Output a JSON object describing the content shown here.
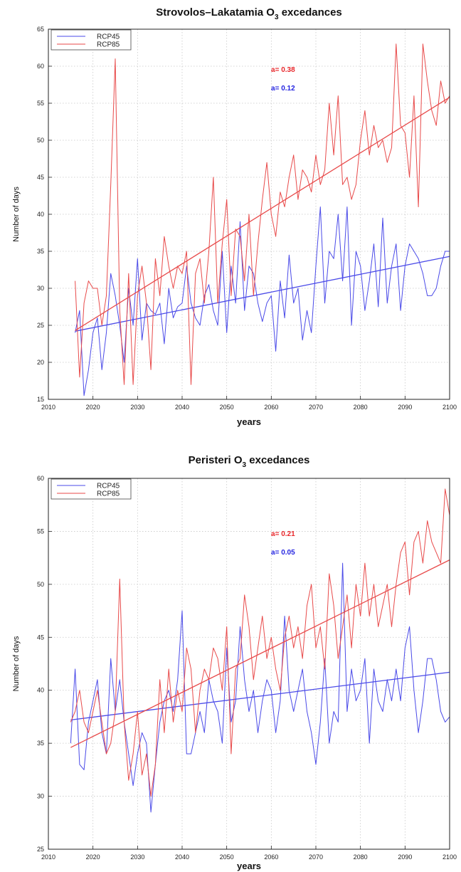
{
  "chart_data": [
    {
      "type": "line",
      "title": {
        "main": "Strovolos–Lakatamia O",
        "sub": "3",
        "rest": " excedances"
      },
      "xlabel": "years",
      "ylabel": "Number of days",
      "xlim": [
        2010,
        2100
      ],
      "ylim": [
        15,
        65
      ],
      "xticks": [
        2010,
        2020,
        2030,
        2040,
        2050,
        2060,
        2070,
        2080,
        2090,
        2100
      ],
      "yticks": [
        15,
        20,
        25,
        30,
        35,
        40,
        45,
        50,
        55,
        60,
        65
      ],
      "grid": true,
      "legend_position": "top-left",
      "annotations": [
        {
          "text": "a= 0.38",
          "color": "#e8262a"
        },
        {
          "text": "a= 0.12",
          "color": "#2323e0"
        }
      ],
      "series": [
        {
          "name": "RCP45",
          "color": "#4a4ae8",
          "x": [
            2016,
            2017,
            2018,
            2019,
            2020,
            2021,
            2022,
            2023,
            2024,
            2025,
            2026,
            2027,
            2028,
            2029,
            2030,
            2031,
            2032,
            2033,
            2034,
            2035,
            2036,
            2037,
            2038,
            2039,
            2040,
            2041,
            2042,
            2043,
            2044,
            2045,
            2046,
            2047,
            2048,
            2049,
            2050,
            2051,
            2052,
            2053,
            2054,
            2055,
            2056,
            2057,
            2058,
            2059,
            2060,
            2061,
            2062,
            2063,
            2064,
            2065,
            2066,
            2067,
            2068,
            2069,
            2070,
            2071,
            2072,
            2073,
            2074,
            2075,
            2076,
            2077,
            2078,
            2079,
            2080,
            2081,
            2082,
            2083,
            2084,
            2085,
            2086,
            2087,
            2088,
            2089,
            2090,
            2091,
            2092,
            2093,
            2094,
            2095,
            2096,
            2097,
            2098,
            2099,
            2100
          ],
          "values": [
            24,
            27,
            15.5,
            19,
            24,
            26,
            19,
            24,
            32,
            29,
            25,
            20,
            30,
            25,
            34,
            23,
            28,
            27,
            26.5,
            28,
            22.5,
            30,
            26,
            27.5,
            28,
            33,
            28,
            26,
            25,
            29,
            30.5,
            27,
            25,
            35,
            24,
            33,
            28,
            39,
            27,
            33,
            32,
            28,
            25.5,
            28,
            29,
            21.5,
            31,
            26,
            34.5,
            28,
            30,
            23,
            27,
            24,
            33,
            41,
            28,
            35,
            34,
            40,
            31,
            41,
            25,
            35,
            33,
            27,
            31,
            36,
            27.5,
            39.5,
            28,
            33,
            36,
            27,
            33,
            36,
            35,
            34,
            32,
            29,
            29,
            30,
            33,
            35,
            35
          ],
          "trend": [
            24.2,
            34.3
          ]
        },
        {
          "name": "RCP85",
          "color": "#e84a4a",
          "x": [
            2016,
            2017,
            2018,
            2019,
            2020,
            2021,
            2022,
            2023,
            2024,
            2025,
            2026,
            2027,
            2028,
            2029,
            2030,
            2031,
            2032,
            2033,
            2034,
            2035,
            2036,
            2037,
            2038,
            2039,
            2040,
            2041,
            2042,
            2043,
            2044,
            2045,
            2046,
            2047,
            2048,
            2049,
            2050,
            2051,
            2052,
            2053,
            2054,
            2055,
            2056,
            2057,
            2058,
            2059,
            2060,
            2061,
            2062,
            2063,
            2064,
            2065,
            2066,
            2067,
            2068,
            2069,
            2070,
            2071,
            2072,
            2073,
            2074,
            2075,
            2076,
            2077,
            2078,
            2079,
            2080,
            2081,
            2082,
            2083,
            2084,
            2085,
            2086,
            2087,
            2088,
            2089,
            2090,
            2091,
            2092,
            2093,
            2094,
            2095,
            2096,
            2097,
            2098,
            2099,
            2100
          ],
          "values": [
            31,
            18,
            28,
            31,
            30,
            30,
            25,
            29,
            44,
            61,
            27,
            17,
            32,
            17,
            29,
            33,
            28,
            19,
            34,
            29,
            37,
            33,
            30,
            33,
            32,
            35,
            17,
            32,
            34,
            28,
            35,
            45,
            28,
            36,
            42,
            29,
            38,
            37,
            31,
            40,
            29,
            36,
            42,
            47,
            40,
            37,
            43,
            41,
            45,
            48,
            42,
            46,
            45,
            43,
            48,
            44,
            46,
            55,
            48,
            56,
            44,
            45,
            42,
            44,
            50,
            54,
            48,
            52,
            49,
            50,
            47,
            49,
            63,
            52,
            51,
            45,
            56,
            41,
            63,
            58,
            54,
            52,
            58,
            55,
            56
          ],
          "trend": [
            24.3,
            55.8
          ]
        }
      ]
    },
    {
      "type": "line",
      "title": {
        "main": "Peristeri O",
        "sub": "3",
        "rest": " excedances"
      },
      "xlabel": "years",
      "ylabel": "Number of days",
      "xlim": [
        2010,
        2100
      ],
      "ylim": [
        25,
        60
      ],
      "xticks": [
        2010,
        2020,
        2030,
        2040,
        2050,
        2060,
        2070,
        2080,
        2090,
        2100
      ],
      "yticks": [
        25,
        30,
        35,
        40,
        45,
        50,
        55,
        60
      ],
      "grid": true,
      "legend_position": "top-left",
      "annotations": [
        {
          "text": "a= 0.21",
          "color": "#e8262a"
        },
        {
          "text": "a= 0.05",
          "color": "#2323e0"
        }
      ],
      "series": [
        {
          "name": "RCP45",
          "color": "#4a4ae8",
          "x": [
            2015,
            2016,
            2017,
            2018,
            2019,
            2020,
            2021,
            2022,
            2023,
            2024,
            2025,
            2026,
            2027,
            2028,
            2029,
            2030,
            2031,
            2032,
            2033,
            2034,
            2035,
            2036,
            2037,
            2038,
            2039,
            2040,
            2041,
            2042,
            2043,
            2044,
            2045,
            2046,
            2047,
            2048,
            2049,
            2050,
            2051,
            2052,
            2053,
            2054,
            2055,
            2056,
            2057,
            2058,
            2059,
            2060,
            2061,
            2062,
            2063,
            2064,
            2065,
            2066,
            2067,
            2068,
            2069,
            2070,
            2071,
            2072,
            2073,
            2074,
            2075,
            2076,
            2077,
            2078,
            2079,
            2080,
            2081,
            2082,
            2083,
            2084,
            2085,
            2086,
            2087,
            2088,
            2089,
            2090,
            2091,
            2092,
            2093,
            2094,
            2095,
            2096,
            2097,
            2098,
            2099,
            2100
          ],
          "values": [
            35,
            42,
            33,
            32.5,
            37,
            39,
            41,
            36,
            34,
            43,
            38,
            41,
            37,
            34,
            31,
            34,
            36,
            35,
            28.5,
            33,
            37,
            39,
            40,
            38,
            41,
            47.5,
            34,
            34,
            36,
            38,
            36,
            41,
            39,
            38,
            35,
            44,
            37,
            39,
            46,
            41,
            38,
            40,
            36,
            39,
            41,
            40,
            36,
            39,
            47,
            40,
            38,
            40,
            42,
            38,
            36,
            33,
            37,
            43,
            35,
            38,
            37,
            52,
            38,
            42,
            39,
            40,
            43,
            35,
            42,
            39,
            38,
            41,
            39,
            42,
            39,
            44,
            46,
            40,
            36,
            39,
            43,
            43,
            41,
            38,
            37,
            37.5
          ],
          "trend": [
            37.2,
            41.7
          ]
        },
        {
          "name": "RCP85",
          "color": "#e84a4a",
          "x": [
            2015,
            2016,
            2017,
            2018,
            2019,
            2020,
            2021,
            2022,
            2023,
            2024,
            2025,
            2026,
            2027,
            2028,
            2029,
            2030,
            2031,
            2032,
            2033,
            2034,
            2035,
            2036,
            2037,
            2038,
            2039,
            2040,
            2041,
            2042,
            2043,
            2044,
            2045,
            2046,
            2047,
            2048,
            2049,
            2050,
            2051,
            2052,
            2053,
            2054,
            2055,
            2056,
            2057,
            2058,
            2059,
            2060,
            2061,
            2062,
            2063,
            2064,
            2065,
            2066,
            2067,
            2068,
            2069,
            2070,
            2071,
            2072,
            2073,
            2074,
            2075,
            2076,
            2077,
            2078,
            2079,
            2080,
            2081,
            2082,
            2083,
            2084,
            2085,
            2086,
            2087,
            2088,
            2089,
            2090,
            2091,
            2092,
            2093,
            2094,
            2095,
            2096,
            2097,
            2098,
            2099,
            2100
          ],
          "values": [
            37,
            38,
            40,
            37,
            36,
            38,
            40,
            37,
            34,
            35,
            38,
            50.5,
            37,
            31.5,
            34,
            38,
            32,
            34,
            30,
            33,
            41,
            36,
            42,
            37,
            40,
            38,
            44,
            42,
            36,
            40,
            42,
            41,
            44,
            43,
            40,
            46,
            34,
            42,
            43,
            49,
            46,
            41,
            44,
            47,
            43,
            45,
            42,
            40,
            45,
            47,
            44,
            46,
            43,
            48,
            50,
            44,
            46,
            42,
            51,
            48,
            43,
            46,
            49,
            44,
            50,
            47,
            52,
            47,
            50,
            46,
            48,
            50,
            46,
            50,
            53,
            54,
            49,
            54,
            55,
            52,
            56,
            54,
            53,
            52,
            59,
            56.5
          ],
          "trend": [
            34.6,
            52.3
          ]
        }
      ]
    }
  ]
}
